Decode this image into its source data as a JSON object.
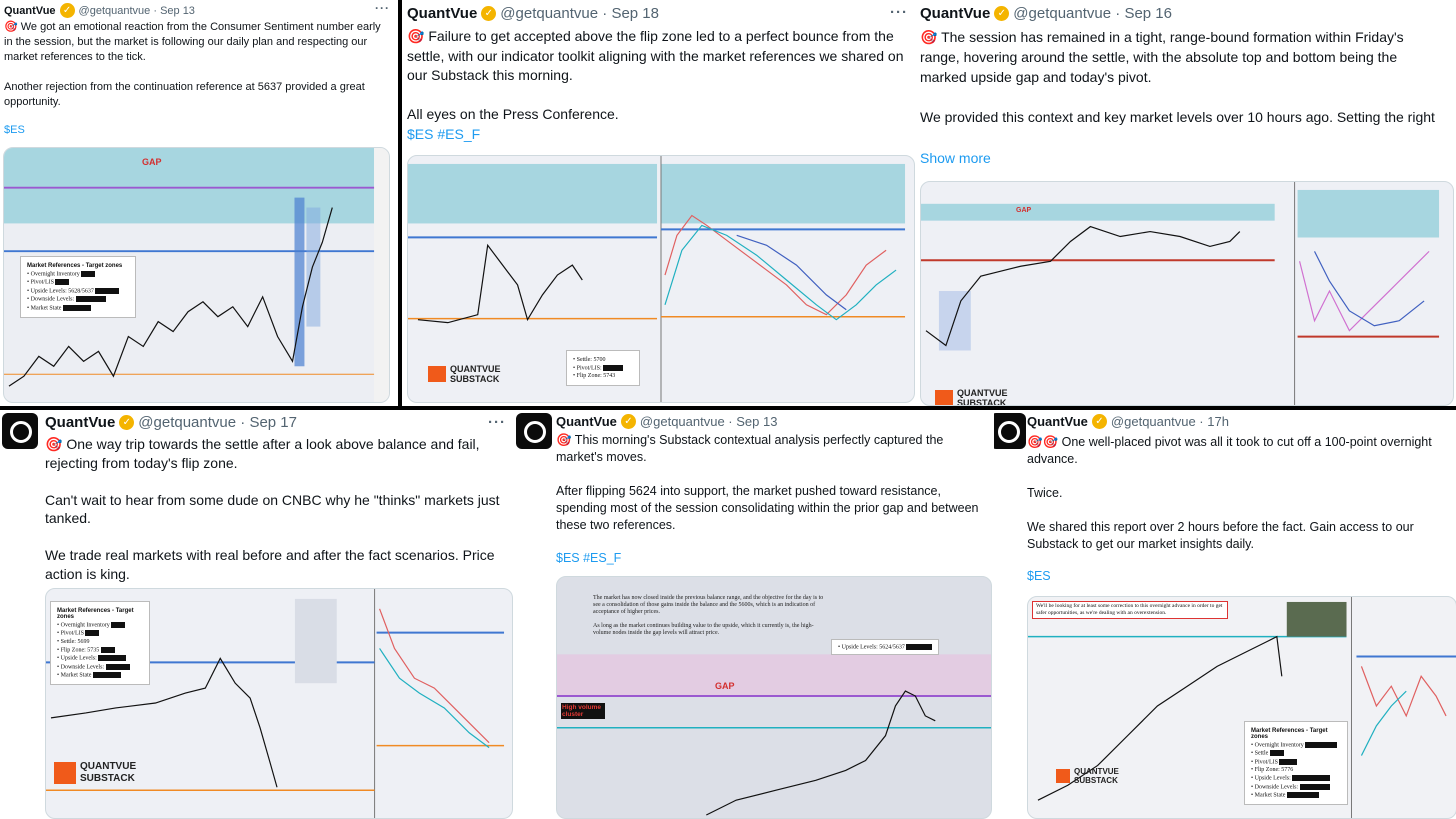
{
  "account": {
    "name": "QuantVue",
    "handle": "@getquantvue"
  },
  "posts": [
    {
      "date": "Sep 13",
      "text": "🎯 We got an emotional reaction from the Consumer Sentiment number early in the session, but the market is following our daily plan and respecting our market references to the tick.\n\nAnother rejection from the continuation reference at 5637 provided a great opportunity.",
      "tags": "$ES",
      "gap_label": "GAP",
      "refs": {
        "title": "Market References - Target zones",
        "items": [
          "Overnight Inventory",
          "Pivot/LIS",
          "Upside Levels: 5628/5637",
          "Downside Levels:",
          "Market State"
        ]
      }
    },
    {
      "date": "Sep 18",
      "text": "🎯 Failure to get accepted above the flip zone led to a perfect bounce from the settle, with our indicator toolkit aligning with the market references we shared on our Substack this morning.\n\nAll eyes on the Press Conference.",
      "tags": "$ES #ES_F",
      "logo": [
        "QUANTVUE",
        "SUBSTACK"
      ],
      "refs": {
        "items": [
          "Settle: 5700",
          "Pivot/LIS:",
          "Flip Zone: 5743"
        ]
      }
    },
    {
      "date": "Sep 16",
      "text": "🎯 The session has remained in a tight, range-bound formation within Friday's range, hovering around the settle, with the absolute top and bottom being the marked upside gap and today's pivot.\n\nWe provided this context and key market levels over 10 hours ago. Setting the right",
      "show_more": "Show more",
      "gap_label": "GAP",
      "logo": [
        "QUANTVUE",
        "SUBSTACK"
      ]
    },
    {
      "date": "Sep 17",
      "text": "🎯 One way trip towards the settle after a look above balance and fail, rejecting from today's flip zone.\n\nCan't wait to hear from some dude on CNBC why he \"thinks\" markets just tanked.\n\nWe trade real markets with real before and after the fact scenarios. Price action is king.",
      "logo": [
        "QUANTVUE",
        "SUBSTACK"
      ],
      "refs": {
        "title": "Market References - Target zones",
        "items": [
          "Overnight Inventory",
          "Pivot/LIS",
          "Settle: 5699",
          "Flip Zone: 5735",
          "Upside Levels:",
          "Downside Levels:",
          "Market State"
        ]
      }
    },
    {
      "date": "Sep 13",
      "text": "🎯 This morning's Substack contextual analysis perfectly captured the market's moves.\n\nAfter flipping 5624 into support, the market pushed toward resistance, spending most of the session consolidating within the prior gap and between these two references.",
      "tags": "$ES #ES_F",
      "gap_label": "GAP",
      "hv_label": "High volume cluster",
      "note": "The market has now closed inside the previous balance range, and the objective for the day is to see a consolidation of those gains inside the balance and the 5600s, which is an indication of acceptance of higher prices.\n\nAs long as the market continues building value to the upside, which it currently is, the high-volume nodes inside the gap levels will attract price.",
      "upside_ref": "Upside Levels: 5624/5637"
    },
    {
      "date": "17h",
      "text": "🎯🎯 One well-placed pivot was all it took to cut off a 100-point overnight advance.\n\nTwice.\n\nWe shared this report over 2 hours before the fact. Gain access to our Substack to get our market insights daily.",
      "tags": "$ES",
      "logo": [
        "QUANTVUE",
        "SUBSTACK"
      ],
      "note": "We'll be looking for at least some correction to this overnight advance in order to get safer opportunities, as we're dealing with an overextension.",
      "refs": {
        "title": "Market References - Target zones",
        "items": [
          "Overnight Inventory",
          "Settle",
          "Pivot/LIS",
          "Flip Zone: 5776",
          "Upside Levels:",
          "Downside Levels:",
          "Market State"
        ]
      }
    }
  ]
}
